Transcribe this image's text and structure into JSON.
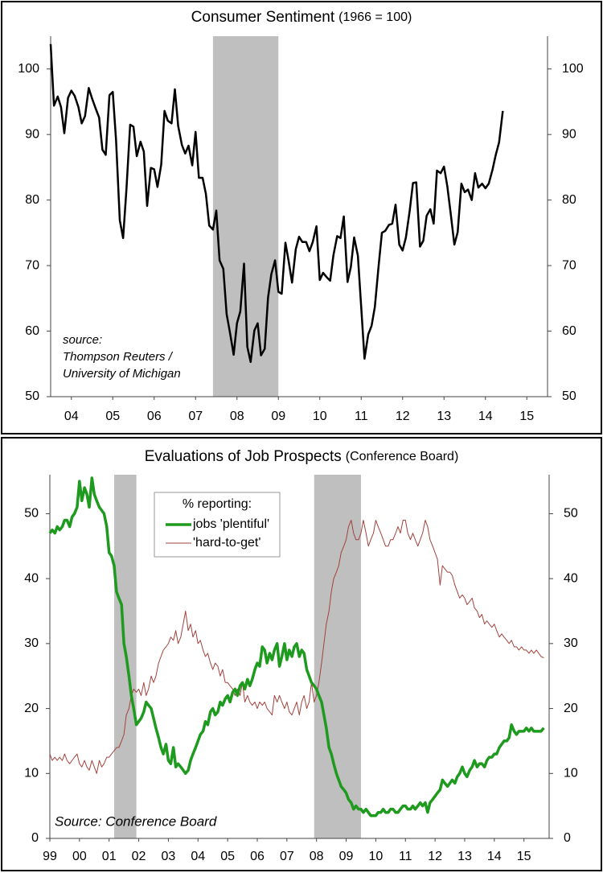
{
  "chart_data": [
    {
      "type": "line",
      "title": "Consumer Sentiment",
      "subtitle": "(1966 = 100)",
      "annotation": [
        "source:",
        "Thompson Reuters /",
        "University of Michigan"
      ],
      "color": "#000000",
      "line_width": 2.5,
      "recessions": [
        [
          2007.92,
          2009.5
        ]
      ],
      "xlim": [
        2004,
        2016
      ],
      "ylim": [
        50,
        105
      ],
      "xticks": [
        {
          "value": 2004.5,
          "label": "04"
        },
        {
          "value": 2005.5,
          "label": "05"
        },
        {
          "value": 2006.5,
          "label": "06"
        },
        {
          "value": 2007.5,
          "label": "07"
        },
        {
          "value": 2008.5,
          "label": "08"
        },
        {
          "value": 2009.5,
          "label": "09"
        },
        {
          "value": 2010.5,
          "label": "10"
        },
        {
          "value": 2011.5,
          "label": "11"
        },
        {
          "value": 2012.5,
          "label": "12"
        },
        {
          "value": 2013.5,
          "label": "13"
        },
        {
          "value": 2014.5,
          "label": "14"
        },
        {
          "value": 2015.5,
          "label": "15"
        }
      ],
      "yticks": [
        50,
        60,
        70,
        80,
        90,
        100
      ],
      "right_axis_labels": true,
      "x": [
        2004,
        2004.08,
        2004.17,
        2004.25,
        2004.33,
        2004.42,
        2004.5,
        2004.58,
        2004.67,
        2004.75,
        2004.83,
        2004.92,
        2005,
        2005.08,
        2005.17,
        2005.25,
        2005.33,
        2005.42,
        2005.5,
        2005.58,
        2005.67,
        2005.75,
        2005.83,
        2005.92,
        2006,
        2006.08,
        2006.17,
        2006.25,
        2006.33,
        2006.42,
        2006.5,
        2006.58,
        2006.67,
        2006.75,
        2006.83,
        2006.92,
        2007,
        2007.08,
        2007.17,
        2007.25,
        2007.33,
        2007.42,
        2007.5,
        2007.58,
        2007.67,
        2007.75,
        2007.83,
        2007.92,
        2008,
        2008.08,
        2008.17,
        2008.25,
        2008.33,
        2008.42,
        2008.5,
        2008.58,
        2008.67,
        2008.75,
        2008.83,
        2008.92,
        2009,
        2009.08,
        2009.17,
        2009.25,
        2009.33,
        2009.42,
        2009.5,
        2009.58,
        2009.67,
        2009.75,
        2009.83,
        2009.92,
        2010,
        2010.08,
        2010.17,
        2010.25,
        2010.33,
        2010.42,
        2010.5,
        2010.58,
        2010.67,
        2010.75,
        2010.83,
        2010.92,
        2011,
        2011.08,
        2011.17,
        2011.25,
        2011.33,
        2011.42,
        2011.5,
        2011.58,
        2011.67,
        2011.75,
        2011.83,
        2011.92,
        2012,
        2012.08,
        2012.17,
        2012.25,
        2012.33,
        2012.42,
        2012.5,
        2012.58,
        2012.67,
        2012.75,
        2012.83,
        2012.92,
        2013,
        2013.08,
        2013.17,
        2013.25,
        2013.33,
        2013.42,
        2013.5,
        2013.58,
        2013.67,
        2013.75,
        2013.83,
        2013.92,
        2014,
        2014.08,
        2014.17,
        2014.25,
        2014.33,
        2014.42,
        2014.5,
        2014.58,
        2014.67,
        2014.75,
        2014.83,
        2014.92
      ],
      "values": [
        103.8,
        94.4,
        95.8,
        94.2,
        90.2,
        95.6,
        96.7,
        95.9,
        94.2,
        91.7,
        92.8,
        97.1,
        95.5,
        94.1,
        92.6,
        87.7,
        86.9,
        96.0,
        96.5,
        89.1,
        76.9,
        74.2,
        81.6,
        91.5,
        91.2,
        86.7,
        88.9,
        87.4,
        79.1,
        84.9,
        84.7,
        82.0,
        85.4,
        93.6,
        92.1,
        91.7,
        96.9,
        91.3,
        88.4,
        87.1,
        88.3,
        85.3,
        90.4,
        83.4,
        83.4,
        80.9,
        76.1,
        75.5,
        78.4,
        70.8,
        69.5,
        62.6,
        59.8,
        56.4,
        61.2,
        63.0,
        70.3,
        57.6,
        55.3,
        60.1,
        61.2,
        56.3,
        57.3,
        65.1,
        68.7,
        70.8,
        66.0,
        65.7,
        73.5,
        70.6,
        67.4,
        72.5,
        74.4,
        73.6,
        73.6,
        72.2,
        73.6,
        76.0,
        67.8,
        68.9,
        68.2,
        67.7,
        71.6,
        74.5,
        74.2,
        77.5,
        67.5,
        69.8,
        74.3,
        71.5,
        63.7,
        55.8,
        59.5,
        60.8,
        63.7,
        69.9,
        75.0,
        75.3,
        76.2,
        76.4,
        79.3,
        73.2,
        72.3,
        74.3,
        78.3,
        82.6,
        82.7,
        72.9,
        73.8,
        77.6,
        78.6,
        76.4,
        84.5,
        84.1,
        85.1,
        82.1,
        77.5,
        73.2,
        75.1,
        82.5,
        81.2,
        81.6,
        80.0,
        84.1,
        81.9,
        82.5,
        81.8,
        82.5,
        84.6,
        86.9,
        88.8,
        93.6
      ]
    },
    {
      "type": "line",
      "title": "Evaluations of Job Prospects",
      "subtitle": "(Conference Board)",
      "annotation": [
        "Source: Conference Board"
      ],
      "legend_title": "% reporting:",
      "legend": "upper left",
      "recessions": [
        [
          2001.17,
          2001.92
        ],
        [
          2007.92,
          2009.5
        ]
      ],
      "xlim": [
        1999,
        2015.85
      ],
      "ylim": [
        0,
        56
      ],
      "xticks": [
        {
          "value": 1999,
          "label": "99"
        },
        {
          "value": 2000,
          "label": "00"
        },
        {
          "value": 2001,
          "label": "01"
        },
        {
          "value": 2002,
          "label": "02"
        },
        {
          "value": 2003,
          "label": "03"
        },
        {
          "value": 2004,
          "label": "04"
        },
        {
          "value": 2005,
          "label": "05"
        },
        {
          "value": 2006,
          "label": "06"
        },
        {
          "value": 2007,
          "label": "07"
        },
        {
          "value": 2008,
          "label": "08"
        },
        {
          "value": 2009,
          "label": "09"
        },
        {
          "value": 2010,
          "label": "10"
        },
        {
          "value": 2011,
          "label": "11"
        },
        {
          "value": 2012,
          "label": "12"
        },
        {
          "value": 2013,
          "label": "13"
        },
        {
          "value": 2014,
          "label": "14"
        },
        {
          "value": 2015,
          "label": "15"
        }
      ],
      "yticks": [
        0,
        10,
        20,
        30,
        40,
        50
      ],
      "right_axis_labels": true,
      "x": [
        1999,
        1999.08,
        1999.17,
        1999.25,
        1999.33,
        1999.42,
        1999.5,
        1999.58,
        1999.67,
        1999.75,
        1999.83,
        1999.92,
        2000,
        2000.08,
        2000.17,
        2000.25,
        2000.33,
        2000.42,
        2000.5,
        2000.58,
        2000.67,
        2000.75,
        2000.83,
        2000.92,
        2001,
        2001.08,
        2001.17,
        2001.25,
        2001.33,
        2001.42,
        2001.5,
        2001.58,
        2001.67,
        2001.75,
        2001.83,
        2001.92,
        2002,
        2002.08,
        2002.17,
        2002.25,
        2002.33,
        2002.42,
        2002.5,
        2002.58,
        2002.67,
        2002.75,
        2002.83,
        2002.92,
        2003,
        2003.08,
        2003.17,
        2003.25,
        2003.33,
        2003.42,
        2003.5,
        2003.58,
        2003.67,
        2003.75,
        2003.83,
        2003.92,
        2004,
        2004.08,
        2004.17,
        2004.25,
        2004.33,
        2004.42,
        2004.5,
        2004.58,
        2004.67,
        2004.75,
        2004.83,
        2004.92,
        2005,
        2005.08,
        2005.17,
        2005.25,
        2005.33,
        2005.42,
        2005.5,
        2005.58,
        2005.67,
        2005.75,
        2005.83,
        2005.92,
        2006,
        2006.08,
        2006.17,
        2006.25,
        2006.33,
        2006.42,
        2006.5,
        2006.58,
        2006.67,
        2006.75,
        2006.83,
        2006.92,
        2007,
        2007.08,
        2007.17,
        2007.25,
        2007.33,
        2007.42,
        2007.5,
        2007.58,
        2007.67,
        2007.75,
        2007.83,
        2007.92,
        2008,
        2008.08,
        2008.17,
        2008.25,
        2008.33,
        2008.42,
        2008.5,
        2008.58,
        2008.67,
        2008.75,
        2008.83,
        2008.92,
        2009,
        2009.08,
        2009.17,
        2009.25,
        2009.33,
        2009.42,
        2009.5,
        2009.58,
        2009.67,
        2009.75,
        2009.83,
        2009.92,
        2010,
        2010.08,
        2010.17,
        2010.25,
        2010.33,
        2010.42,
        2010.5,
        2010.58,
        2010.67,
        2010.75,
        2010.83,
        2010.92,
        2011,
        2011.08,
        2011.17,
        2011.25,
        2011.33,
        2011.42,
        2011.5,
        2011.58,
        2011.67,
        2011.75,
        2011.83,
        2011.92,
        2012,
        2012.08,
        2012.17,
        2012.25,
        2012.33,
        2012.42,
        2012.5,
        2012.58,
        2012.67,
        2012.75,
        2012.83,
        2012.92,
        2013,
        2013.08,
        2013.17,
        2013.25,
        2013.33,
        2013.42,
        2013.5,
        2013.58,
        2013.67,
        2013.75,
        2013.83,
        2013.92,
        2014,
        2014.08,
        2014.17,
        2014.25,
        2014.33,
        2014.42,
        2014.5,
        2014.58,
        2014.67,
        2014.75,
        2014.83,
        2014.92,
        2015,
        2015.08,
        2015.17,
        2015.25,
        2015.33,
        2015.42,
        2015.5,
        2015.58,
        2015.67
      ],
      "series": [
        {
          "name": "jobs 'plentiful'",
          "color": "#1e9a1e",
          "line_width": 3.5,
          "values": [
            47,
            47.5,
            47,
            48,
            47.5,
            48,
            49,
            49,
            48,
            49.5,
            50,
            51,
            55,
            52,
            54,
            53,
            51,
            55.5,
            53,
            52,
            51,
            50.5,
            50,
            48,
            44,
            43.5,
            42,
            38,
            37,
            36,
            30,
            28,
            25,
            22,
            20,
            17.5,
            18,
            18.5,
            19.5,
            21,
            20.5,
            20,
            18.5,
            17,
            15.5,
            14,
            13,
            14.5,
            12,
            11.5,
            14,
            11,
            11.5,
            11,
            10.5,
            10,
            10.5,
            12,
            13,
            14,
            15,
            16,
            16.5,
            18,
            17.5,
            19.5,
            20,
            19,
            19.5,
            21,
            20.5,
            21.5,
            22,
            21,
            22.5,
            23,
            22,
            23.5,
            24,
            23,
            24.5,
            23.5,
            24.5,
            26,
            27,
            26.5,
            29.5,
            29,
            27,
            28.5,
            27.5,
            29,
            30,
            26.5,
            28,
            30,
            27.5,
            29,
            28,
            29.5,
            30,
            28,
            29,
            28.5,
            26,
            25,
            24,
            23.5,
            23,
            22,
            21,
            19,
            17,
            14,
            13,
            11.5,
            10,
            9,
            8,
            7.5,
            7,
            6,
            5.5,
            4.5,
            5,
            4.5,
            4.5,
            4,
            4.5,
            4,
            3.5,
            3.5,
            3.5,
            4,
            4,
            4.5,
            4,
            4,
            4.5,
            4.5,
            4,
            4,
            4.5,
            5,
            5,
            4.5,
            4.5,
            5,
            4.5,
            5,
            5.5,
            5,
            5.5,
            4,
            5.5,
            6,
            6.5,
            7,
            7.5,
            9,
            8.5,
            8,
            8.5,
            9,
            8.5,
            9.5,
            10,
            11,
            10,
            9.5,
            10.5,
            11,
            12,
            11,
            11.5,
            11.5,
            11,
            12,
            12.5,
            12.5,
            13,
            13,
            14,
            14.5,
            15,
            15,
            15.5,
            17.5,
            16.5,
            16,
            16.5,
            16.5,
            16.5,
            17,
            16.5,
            17,
            16.5,
            16.5,
            16.5,
            16.5,
            17
          ]
        },
        {
          "name": "'hard-to-get'",
          "color": "#a2423c",
          "line_width": 1,
          "values": [
            13,
            12,
            12.5,
            12,
            12.5,
            12,
            13,
            12,
            11.5,
            12,
            12.5,
            13,
            11.5,
            11,
            12,
            11,
            10.5,
            12,
            11,
            10,
            12,
            11,
            11.5,
            12.5,
            12.5,
            13,
            13.5,
            14,
            14,
            15,
            16,
            19,
            20,
            22,
            23,
            22.5,
            23,
            22,
            24,
            22,
            23,
            25,
            24,
            25,
            27,
            28,
            29,
            29.5,
            30,
            31,
            30.5,
            32,
            30,
            31,
            33,
            35,
            32,
            33,
            31,
            32,
            30,
            30.5,
            29,
            28,
            28.5,
            27,
            26,
            27,
            26.5,
            25,
            26,
            24,
            24,
            23.5,
            23,
            22,
            23,
            22,
            24,
            21,
            22,
            21,
            20.5,
            21,
            20,
            21,
            20.5,
            21,
            20,
            19.5,
            19,
            22,
            21,
            22,
            21,
            20,
            21,
            19.5,
            19,
            20,
            21,
            19,
            21,
            22,
            20,
            21,
            24,
            21,
            22,
            24,
            27,
            30,
            33,
            35,
            38,
            40,
            41,
            42,
            44,
            45,
            46,
            48,
            49,
            47,
            46,
            46,
            47,
            49,
            47,
            45,
            46,
            47,
            49,
            48,
            47,
            46,
            45,
            45,
            46,
            46,
            47,
            48,
            47,
            49,
            49,
            47,
            46,
            47,
            46,
            45,
            46,
            47,
            49,
            48,
            46,
            45,
            44,
            43,
            39,
            42,
            41.5,
            41,
            41,
            40.5,
            39,
            38,
            37,
            37.5,
            37,
            36,
            36.5,
            37,
            35.5,
            35,
            34,
            34.5,
            33,
            33.5,
            33,
            32.5,
            33,
            32,
            31,
            31.5,
            31,
            30.5,
            30,
            30.5,
            29.5,
            29.5,
            29,
            29.5,
            29,
            29,
            28.5,
            29,
            28.5,
            29,
            28.5,
            28,
            27.8
          ]
        }
      ]
    }
  ]
}
